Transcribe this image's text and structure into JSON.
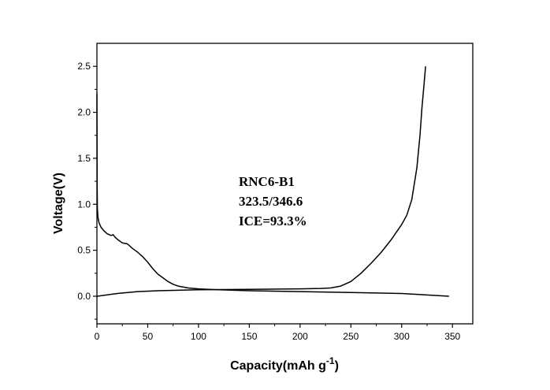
{
  "chart_data": {
    "type": "line",
    "xlabel": "Capacity(mAh g",
    "xlabel_sup": "-1",
    "xlabel_close": ")",
    "ylabel": "Voltage(V)",
    "xlim": [
      0,
      370
    ],
    "ylim": [
      -0.3,
      2.75
    ],
    "xticks": [
      0,
      50,
      100,
      150,
      200,
      250,
      300,
      350
    ],
    "xtick_labels": [
      "0",
      "50",
      "100",
      "150",
      "200",
      "250",
      "300",
      "350"
    ],
    "yticks": [
      0.0,
      0.5,
      1.0,
      1.5,
      2.0,
      2.5
    ],
    "ytick_labels": [
      "0.0",
      "0.5",
      "1.0",
      "1.5",
      "2.0",
      "2.5"
    ],
    "grid": false,
    "annotations": [
      "RNC6-B1",
      "323.5/346.6",
      "ICE=93.3%"
    ],
    "series": [
      {
        "role": "discharge",
        "x": [
          0,
          0.2,
          0.5,
          1,
          2,
          4,
          7,
          10,
          14,
          16,
          18,
          20,
          25,
          30,
          35,
          40,
          45,
          50,
          55,
          60,
          65,
          70,
          75,
          80,
          90,
          100,
          110,
          120,
          150,
          200,
          250,
          300,
          346.6
        ],
        "y": [
          2.2,
          1.2,
          0.95,
          0.86,
          0.8,
          0.75,
          0.71,
          0.68,
          0.66,
          0.67,
          0.64,
          0.62,
          0.58,
          0.57,
          0.52,
          0.48,
          0.43,
          0.37,
          0.3,
          0.24,
          0.2,
          0.16,
          0.13,
          0.11,
          0.09,
          0.08,
          0.075,
          0.07,
          0.06,
          0.05,
          0.04,
          0.03,
          0.0
        ]
      },
      {
        "role": "charge",
        "x": [
          0,
          20,
          40,
          60,
          80,
          100,
          150,
          200,
          220,
          230,
          240,
          250,
          260,
          270,
          280,
          290,
          300,
          305,
          310,
          315,
          318,
          320,
          322,
          323.5
        ],
        "y": [
          0.0,
          0.03,
          0.05,
          0.06,
          0.065,
          0.07,
          0.075,
          0.08,
          0.085,
          0.09,
          0.11,
          0.16,
          0.25,
          0.36,
          0.48,
          0.62,
          0.78,
          0.88,
          1.05,
          1.4,
          1.75,
          2.05,
          2.3,
          2.5
        ]
      }
    ]
  }
}
